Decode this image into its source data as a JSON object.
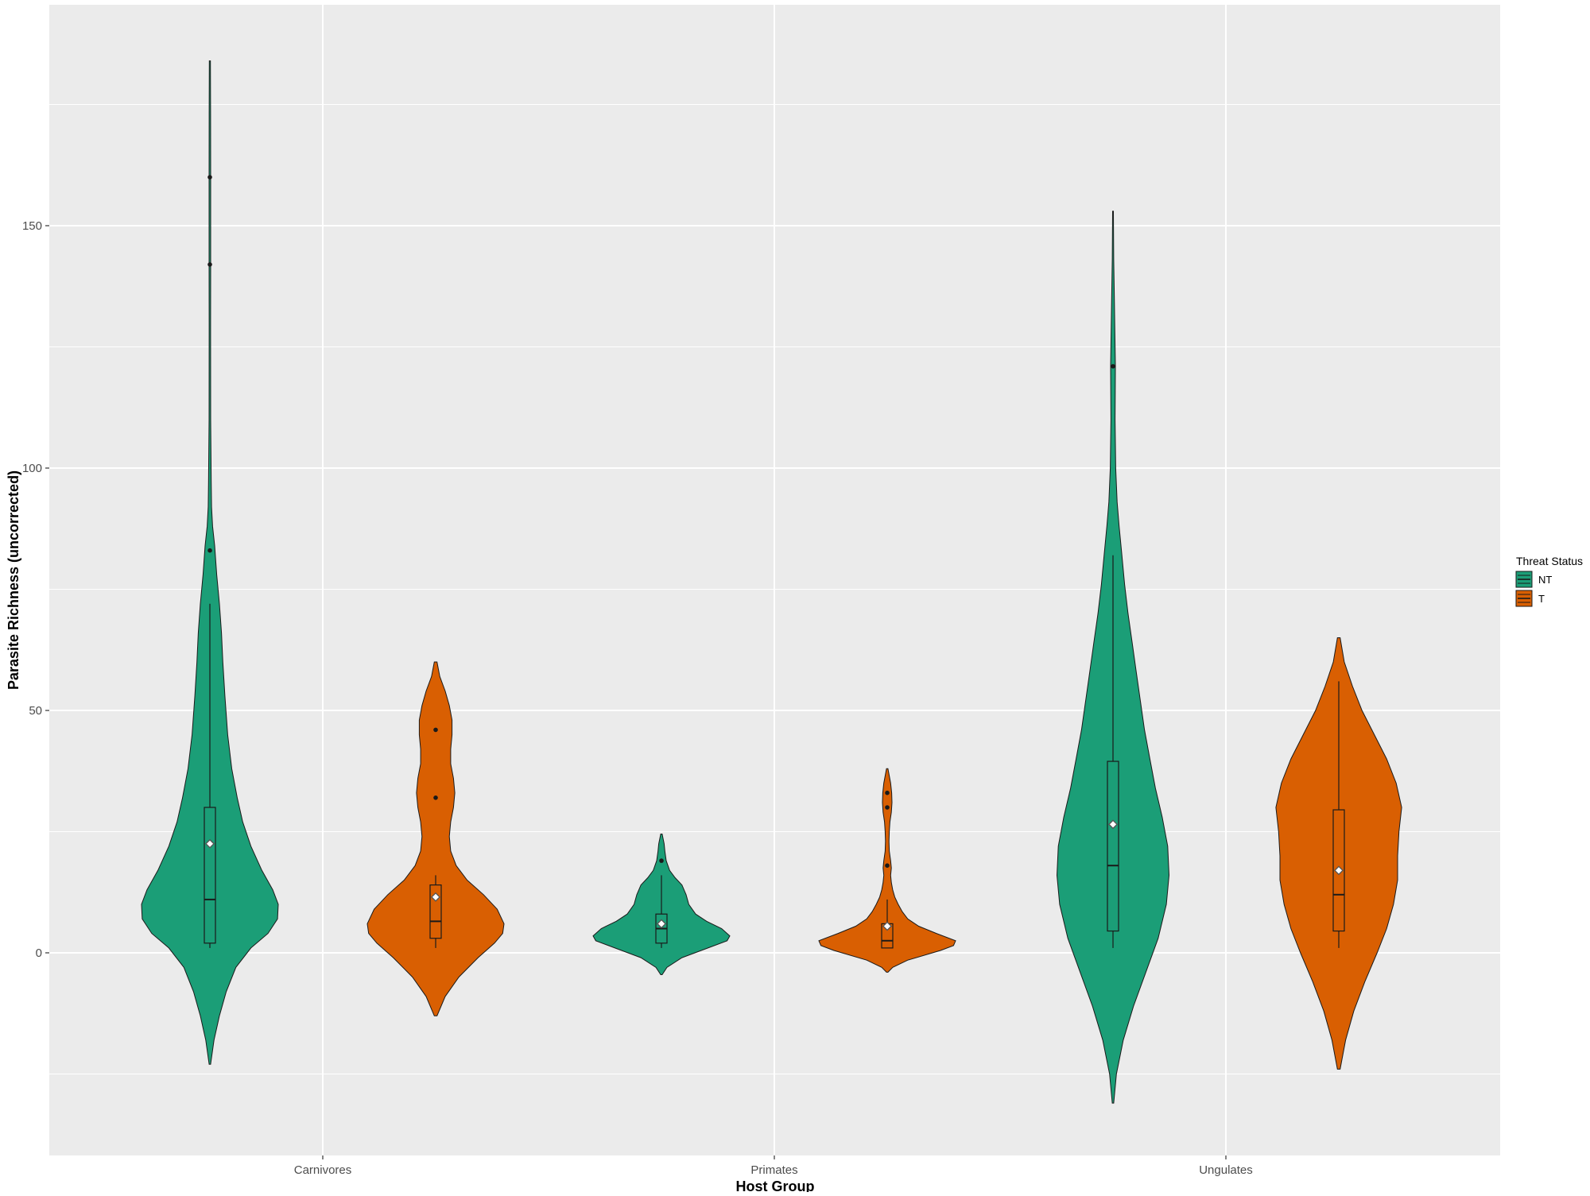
{
  "chart_data": {
    "type": "violin",
    "xlabel": "Host Group",
    "ylabel": "Parasite Richness (uncorrected)",
    "categories": [
      "Carnivores",
      "Primates",
      "Ungulates"
    ],
    "y_ticks": [
      0,
      50,
      100,
      150
    ],
    "ylim": [
      -40,
      195
    ],
    "grid": true,
    "legend": {
      "title": "Threat Status",
      "position": "right",
      "entries": [
        {
          "label": "NT",
          "color": "#1B9E77"
        },
        {
          "label": "T",
          "color": "#D95F02"
        }
      ]
    },
    "series": [
      {
        "name": "NT",
        "color": "#1B9E77",
        "groups": [
          {
            "category": "Carnivores",
            "violin_range": [
              -23,
              184
            ],
            "density": [
              [
                -23,
                0.01
              ],
              [
                -18,
                0.06
              ],
              [
                -13,
                0.14
              ],
              [
                -8,
                0.24
              ],
              [
                -3,
                0.38
              ],
              [
                1,
                0.6
              ],
              [
                4,
                0.85
              ],
              [
                7,
                0.99
              ],
              [
                10,
                1.0
              ],
              [
                13,
                0.92
              ],
              [
                17,
                0.76
              ],
              [
                22,
                0.6
              ],
              [
                27,
                0.48
              ],
              [
                32,
                0.4
              ],
              [
                38,
                0.32
              ],
              [
                45,
                0.26
              ],
              [
                53,
                0.22
              ],
              [
                60,
                0.19
              ],
              [
                66,
                0.17
              ],
              [
                72,
                0.14
              ],
              [
                78,
                0.1
              ],
              [
                84,
                0.07
              ],
              [
                88,
                0.04
              ],
              [
                92,
                0.025
              ],
              [
                97,
                0.02
              ],
              [
                110,
                0.012
              ],
              [
                129,
                0.01
              ],
              [
                142,
                0.012
              ],
              [
                160,
                0.012
              ],
              [
                173,
                0.01
              ],
              [
                184,
                0.008
              ]
            ],
            "box": {
              "q1": 2,
              "median": 11,
              "q3": 30,
              "whisker_low": 1,
              "whisker_high": 72
            },
            "mean": 22.5,
            "outliers": [
              83,
              142,
              160
            ]
          },
          {
            "category": "Primates",
            "violin_range": [
              -4.5,
              24.5
            ],
            "density": [
              [
                -4.5,
                0.01
              ],
              [
                -3,
                0.08
              ],
              [
                -1,
                0.3
              ],
              [
                1,
                0.68
              ],
              [
                2.5,
                0.96
              ],
              [
                3.5,
                1.0
              ],
              [
                5,
                0.88
              ],
              [
                6.5,
                0.66
              ],
              [
                8,
                0.5
              ],
              [
                10,
                0.4
              ],
              [
                12,
                0.36
              ],
              [
                14,
                0.3
              ],
              [
                15.5,
                0.2
              ],
              [
                17,
                0.12
              ],
              [
                19,
                0.07
              ],
              [
                21,
                0.05
              ],
              [
                22.5,
                0.04
              ],
              [
                24.5,
                0.01
              ]
            ],
            "box": {
              "q1": 2,
              "median": 5,
              "q3": 8,
              "whisker_low": 1,
              "whisker_high": 16
            },
            "mean": 6,
            "outliers": [
              19
            ]
          },
          {
            "category": "Ungulates",
            "violin_range": [
              -31,
              153
            ],
            "density": [
              [
                -31,
                0.01
              ],
              [
                -25,
                0.05
              ],
              [
                -18,
                0.15
              ],
              [
                -11,
                0.3
              ],
              [
                -4,
                0.48
              ],
              [
                3,
                0.66
              ],
              [
                10,
                0.78
              ],
              [
                16,
                0.82
              ],
              [
                22,
                0.8
              ],
              [
                28,
                0.72
              ],
              [
                34,
                0.62
              ],
              [
                40,
                0.54
              ],
              [
                46,
                0.46
              ],
              [
                52,
                0.4
              ],
              [
                58,
                0.34
              ],
              [
                64,
                0.28
              ],
              [
                70,
                0.22
              ],
              [
                76,
                0.17
              ],
              [
                82,
                0.13
              ],
              [
                88,
                0.09
              ],
              [
                93,
                0.06
              ],
              [
                100,
                0.04
              ],
              [
                110,
                0.03
              ],
              [
                121,
                0.035
              ],
              [
                135,
                0.02
              ],
              [
                143,
                0.01
              ],
              [
                153,
                0.006
              ]
            ],
            "box": {
              "q1": 4.5,
              "median": 18,
              "q3": 39.5,
              "whisker_low": 1,
              "whisker_high": 82
            },
            "mean": 26.5,
            "outliers": [
              121
            ]
          }
        ]
      },
      {
        "name": "T",
        "color": "#D95F02",
        "groups": [
          {
            "category": "Carnivores",
            "violin_range": [
              -13,
              60
            ],
            "density": [
              [
                -13,
                0.02
              ],
              [
                -9,
                0.14
              ],
              [
                -5,
                0.34
              ],
              [
                -1,
                0.62
              ],
              [
                2,
                0.86
              ],
              [
                4,
                0.98
              ],
              [
                6,
                1.0
              ],
              [
                9,
                0.9
              ],
              [
                12,
                0.7
              ],
              [
                15,
                0.46
              ],
              [
                18,
                0.3
              ],
              [
                21,
                0.22
              ],
              [
                24,
                0.2
              ],
              [
                27,
                0.22
              ],
              [
                30,
                0.26
              ],
              [
                33,
                0.28
              ],
              [
                36,
                0.26
              ],
              [
                39,
                0.22
              ],
              [
                42,
                0.22
              ],
              [
                45,
                0.24
              ],
              [
                48,
                0.24
              ],
              [
                51,
                0.2
              ],
              [
                54,
                0.14
              ],
              [
                57,
                0.06
              ],
              [
                60,
                0.02
              ]
            ],
            "box": {
              "q1": 3,
              "median": 6.5,
              "q3": 14,
              "whisker_low": 1,
              "whisker_high": 16
            },
            "mean": 11.5,
            "outliers": [
              32,
              46
            ]
          },
          {
            "category": "Primates",
            "violin_range": [
              -4,
              38
            ],
            "density": [
              [
                -4,
                0.01
              ],
              [
                -3,
                0.08
              ],
              [
                -1.5,
                0.3
              ],
              [
                0.5,
                0.78
              ],
              [
                1.5,
                0.97
              ],
              [
                2.5,
                1.0
              ],
              [
                4,
                0.72
              ],
              [
                5.5,
                0.46
              ],
              [
                7,
                0.3
              ],
              [
                8.5,
                0.22
              ],
              [
                10,
                0.16
              ],
              [
                11.5,
                0.11
              ],
              [
                13,
                0.08
              ],
              [
                14.5,
                0.06
              ],
              [
                16,
                0.05
              ],
              [
                17.5,
                0.06
              ],
              [
                19,
                0.05
              ],
              [
                21,
                0.03
              ],
              [
                23,
                0.025
              ],
              [
                25,
                0.03
              ],
              [
                27,
                0.04
              ],
              [
                29,
                0.06
              ],
              [
                31,
                0.07
              ],
              [
                33,
                0.065
              ],
              [
                35,
                0.05
              ],
              [
                36.5,
                0.03
              ],
              [
                38,
                0.01
              ]
            ],
            "box": {
              "q1": 1,
              "median": 2.5,
              "q3": 6,
              "whisker_low": 1,
              "whisker_high": 11
            },
            "mean": 5.5,
            "outliers": [
              18,
              30,
              33
            ]
          },
          {
            "category": "Ungulates",
            "violin_range": [
              -24,
              65
            ],
            "density": [
              [
                -24,
                0.02
              ],
              [
                -18,
                0.1
              ],
              [
                -12,
                0.22
              ],
              [
                -6,
                0.38
              ],
              [
                0,
                0.56
              ],
              [
                5,
                0.7
              ],
              [
                10,
                0.8
              ],
              [
                15,
                0.86
              ],
              [
                20,
                0.86
              ],
              [
                25,
                0.88
              ],
              [
                30,
                0.92
              ],
              [
                35,
                0.84
              ],
              [
                40,
                0.7
              ],
              [
                45,
                0.52
              ],
              [
                50,
                0.34
              ],
              [
                55,
                0.2
              ],
              [
                60,
                0.08
              ],
              [
                65,
                0.02
              ]
            ],
            "box": {
              "q1": 4.5,
              "median": 12,
              "q3": 29.5,
              "whisker_low": 1,
              "whisker_high": 56
            },
            "mean": 17,
            "outliers": []
          }
        ]
      }
    ]
  }
}
